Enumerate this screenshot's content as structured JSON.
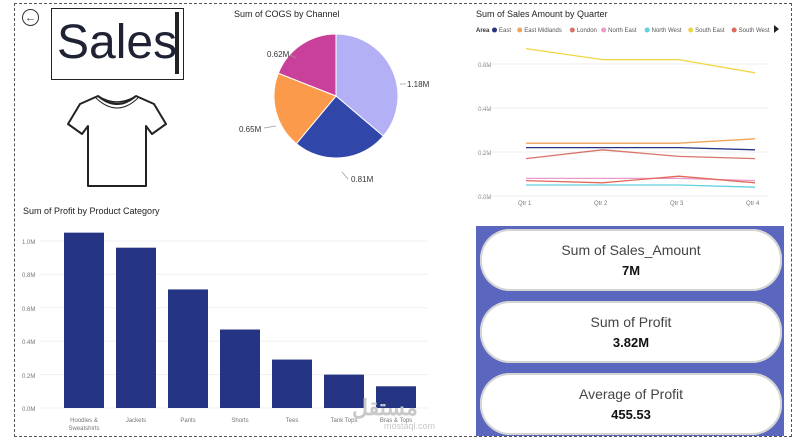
{
  "header": {
    "title": "Sales",
    "back_icon": "back-arrow-icon"
  },
  "image": {
    "icon": "tshirt-icon"
  },
  "pie": {
    "title": "Sum of COGS by Channel",
    "labels": [
      "1.18M",
      "0.81M",
      "0.65M",
      "0.62M"
    ]
  },
  "line": {
    "title": "Sum of Sales Amount by Quarter",
    "legend_title": "Area",
    "yticks": [
      "0.6M",
      "0.4M",
      "0.2M",
      "0.0M"
    ],
    "xticks": [
      "Qtr 1",
      "Qtr 2",
      "Qtr 3",
      "Qtr 4"
    ]
  },
  "bar": {
    "title": "Sum of Profit by Product Category",
    "yticks": [
      "1.0M",
      "0.8M",
      "0.6M",
      "0.4M",
      "0.2M",
      "0.0M"
    ],
    "xticks": [
      "Hoodies & Sweatshirts",
      "Jackets",
      "Pants",
      "Shorts",
      "Tees",
      "Tank Tops",
      "Bras & Tops"
    ]
  },
  "kpis": [
    {
      "label": "Sum of Sales_Amount",
      "value": "7M"
    },
    {
      "label": "Sum of Profit",
      "value": "3.82M"
    },
    {
      "label": "Average of Profit",
      "value": "455.53"
    }
  ],
  "watermark": {
    "text": "مستقل",
    "sub": "mostaql.com"
  },
  "colors": {
    "bar": "#253483",
    "kpi_bg": "#5b67bf"
  },
  "chart_data": [
    {
      "type": "pie",
      "title": "Sum of COGS by Channel",
      "slices": [
        {
          "value": 1.18,
          "label": "1.18M",
          "color": "#b3b0f5"
        },
        {
          "value": 0.81,
          "label": "0.81M",
          "color": "#3046a8"
        },
        {
          "value": 0.65,
          "label": "0.65M",
          "color": "#fb9a4b"
        },
        {
          "value": 0.62,
          "label": "0.62M",
          "color": "#c9409a"
        }
      ],
      "unit": "M"
    },
    {
      "type": "line",
      "title": "Sum of Sales Amount by Quarter",
      "x": [
        "Qtr 1",
        "Qtr 2",
        "Qtr 3",
        "Qtr 4"
      ],
      "ylim": [
        0,
        0.7
      ],
      "legend_position": "top",
      "series": [
        {
          "name": "East",
          "values": [
            0.22,
            0.22,
            0.22,
            0.21
          ],
          "color": "#253483"
        },
        {
          "name": "East Midlands",
          "values": [
            0.24,
            0.24,
            0.24,
            0.26
          ],
          "color": "#f0a35a"
        },
        {
          "name": "London",
          "values": [
            0.17,
            0.21,
            0.18,
            0.17
          ],
          "color": "#d9736b"
        },
        {
          "name": "North East",
          "values": [
            0.08,
            0.08,
            0.08,
            0.07
          ],
          "color": "#e89ac8"
        },
        {
          "name": "North West",
          "values": [
            0.05,
            0.05,
            0.05,
            0.04
          ],
          "color": "#5fd0e0"
        },
        {
          "name": "South East",
          "values": [
            0.67,
            0.62,
            0.62,
            0.56
          ],
          "color": "#f2d545"
        },
        {
          "name": "South West",
          "values": [
            0.07,
            0.06,
            0.09,
            0.06
          ],
          "color": "#e36a5a"
        }
      ]
    },
    {
      "type": "bar",
      "title": "Sum of Profit by Product Category",
      "categories": [
        "Hoodies & Sweatshirts",
        "Jackets",
        "Pants",
        "Shorts",
        "Tees",
        "Tank Tops",
        "Bras & Tops"
      ],
      "values": [
        1.05,
        0.96,
        0.71,
        0.47,
        0.29,
        0.2,
        0.13
      ],
      "ylim": [
        0,
        1.1
      ],
      "unit": "M"
    }
  ]
}
